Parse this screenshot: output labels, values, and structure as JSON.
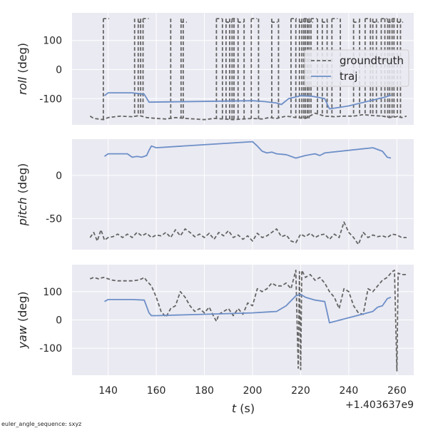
{
  "colors": {
    "panel_bg": "#eaeaf2",
    "grid": "#ffffff",
    "groundtruth": "#646464",
    "traj": "#6d8fc8"
  },
  "footnote": "euler_angle_sequence: sxyz",
  "chart_data": {
    "type": "line",
    "x_ticks": [
      140,
      160,
      180,
      200,
      220,
      240,
      260
    ],
    "xlim": [
      125,
      267
    ],
    "xlabel_prefix": "t",
    "xlabel_suffix": " (s)",
    "x_offset_label": "+1.403637e9",
    "legend": {
      "placement": "right",
      "entries": [
        {
          "name": "groundtruth",
          "style": "dashed",
          "color": "#646464"
        },
        {
          "name": "traj",
          "style": "solid",
          "color": "#6d8fc8"
        }
      ]
    },
    "panels": [
      {
        "id": "roll",
        "ylabel_italic": "roll",
        "ylabel_suffix": " (deg)",
        "ylim": [
          -190,
          195
        ],
        "y_ticks": [
          -100,
          0,
          100
        ],
        "groundtruth": {
          "base": [
            [
              132.5,
              -160
            ],
            [
              134,
              -168
            ],
            [
              136,
              -170
            ],
            [
              138,
              -172
            ],
            [
              140,
              -165
            ],
            [
              145,
              -160
            ],
            [
              150,
              -162
            ],
            [
              153,
              -158
            ],
            [
              156,
              -165
            ],
            [
              160,
              -168
            ],
            [
              164,
              -170
            ],
            [
              168,
              -165
            ],
            [
              172,
              -168
            ],
            [
              176,
              -170
            ],
            [
              180,
              -172
            ],
            [
              184,
              -168
            ],
            [
              188,
              -170
            ],
            [
              192,
              -172
            ],
            [
              196,
              -170
            ],
            [
              200,
              -168
            ],
            [
              204,
              -170
            ],
            [
              207,
              -165
            ],
            [
              210,
              -168
            ],
            [
              214,
              -160
            ],
            [
              218,
              -165
            ],
            [
              222,
              -168
            ],
            [
              226,
              -150
            ],
            [
              230,
              -160
            ],
            [
              234,
              -162
            ],
            [
              238,
              -160
            ],
            [
              242,
              -160
            ],
            [
              246,
              -155
            ],
            [
              250,
              -158
            ],
            [
              254,
              -160
            ],
            [
              257,
              -165
            ],
            [
              260,
              -162
            ],
            [
              262,
              -165
            ],
            [
              264,
              -160
            ]
          ],
          "flip_times": [
            138,
            151,
            152.5,
            153.5,
            154.5,
            166,
            170.3,
            171.2,
            185,
            187.5,
            189,
            190.5,
            191.5,
            192.3,
            194,
            196.5,
            199.5,
            202.5,
            208,
            210.8,
            216,
            218,
            219.5,
            220.5,
            221.3,
            222,
            222.8,
            223.5,
            224.3,
            227,
            229,
            231,
            233,
            236.5,
            242,
            244.5,
            246.8,
            249,
            250,
            251.5,
            253.5,
            255,
            256.2,
            257,
            258,
            258.8,
            260.2,
            261.5
          ],
          "top_level": 175
        },
        "traj": [
          [
            138.5,
            -90
          ],
          [
            140,
            -80
          ],
          [
            150,
            -80
          ],
          [
            155,
            -85
          ],
          [
            157,
            -112
          ],
          [
            200,
            -107
          ],
          [
            205,
            -110
          ],
          [
            210,
            -115
          ],
          [
            212,
            -120
          ],
          [
            215,
            -100
          ],
          [
            220,
            -90
          ],
          [
            225,
            -92
          ],
          [
            230,
            -100
          ],
          [
            232,
            -135
          ],
          [
            240,
            -125
          ],
          [
            250,
            -105
          ],
          [
            255,
            -95
          ],
          [
            257.5,
            -88
          ]
        ]
      },
      {
        "id": "pitch",
        "ylabel_italic": "pitch",
        "ylabel_suffix": " (deg)",
        "ylim": [
          -86,
          42
        ],
        "y_ticks": [
          -50,
          0
        ],
        "groundtruth": [
          [
            132.5,
            -72
          ],
          [
            134,
            -66
          ],
          [
            135.5,
            -76
          ],
          [
            137,
            -63
          ],
          [
            138.5,
            -75
          ],
          [
            140,
            -72
          ],
          [
            142,
            -71
          ],
          [
            144,
            -68
          ],
          [
            146,
            -72
          ],
          [
            148,
            -68
          ],
          [
            150,
            -72
          ],
          [
            152,
            -66
          ],
          [
            154,
            -70
          ],
          [
            156,
            -67
          ],
          [
            158,
            -72
          ],
          [
            160,
            -69
          ],
          [
            162,
            -70
          ],
          [
            164,
            -66
          ],
          [
            166,
            -72
          ],
          [
            168,
            -63
          ],
          [
            170,
            -70
          ],
          [
            172,
            -62
          ],
          [
            174,
            -66
          ],
          [
            176,
            -71
          ],
          [
            178,
            -68
          ],
          [
            180,
            -72
          ],
          [
            182,
            -67
          ],
          [
            184,
            -74
          ],
          [
            186,
            -66
          ],
          [
            188,
            -70
          ],
          [
            190,
            -64
          ],
          [
            192,
            -72
          ],
          [
            194,
            -69
          ],
          [
            196,
            -74
          ],
          [
            198,
            -70
          ],
          [
            200,
            -76
          ],
          [
            202,
            -67
          ],
          [
            204,
            -72
          ],
          [
            206,
            -70
          ],
          [
            208,
            -66
          ],
          [
            210,
            -62
          ],
          [
            212,
            -71
          ],
          [
            214,
            -69
          ],
          [
            216,
            -76
          ],
          [
            218,
            -78
          ],
          [
            220,
            -68
          ],
          [
            222,
            -71
          ],
          [
            224,
            -67
          ],
          [
            226,
            -72
          ],
          [
            228,
            -69
          ],
          [
            230,
            -68
          ],
          [
            232,
            -74
          ],
          [
            234,
            -68
          ],
          [
            236,
            -72
          ],
          [
            238,
            -54
          ],
          [
            240,
            -66
          ],
          [
            242,
            -72
          ],
          [
            244,
            -80
          ],
          [
            246,
            -66
          ],
          [
            248,
            -72
          ],
          [
            250,
            -69
          ],
          [
            252,
            -71
          ],
          [
            254,
            -70
          ],
          [
            256,
            -72
          ],
          [
            258,
            -68
          ],
          [
            260,
            -69
          ],
          [
            262,
            -72
          ],
          [
            264,
            -72
          ]
        ],
        "traj": [
          [
            138.5,
            22
          ],
          [
            140,
            25
          ],
          [
            148,
            25
          ],
          [
            150,
            21
          ],
          [
            152,
            22
          ],
          [
            154,
            21
          ],
          [
            156,
            23
          ],
          [
            157,
            29
          ],
          [
            158,
            34
          ],
          [
            160,
            32
          ],
          [
            200,
            39
          ],
          [
            202,
            34
          ],
          [
            204,
            28
          ],
          [
            206,
            26
          ],
          [
            208,
            27
          ],
          [
            210,
            25
          ],
          [
            214,
            24
          ],
          [
            218,
            20
          ],
          [
            222,
            23
          ],
          [
            224,
            24
          ],
          [
            226,
            25
          ],
          [
            228,
            23
          ],
          [
            230,
            26
          ],
          [
            250,
            32
          ],
          [
            254,
            28
          ],
          [
            256,
            21
          ],
          [
            257.5,
            20
          ]
        ]
      },
      {
        "id": "yaw",
        "ylabel_italic": "yaw",
        "ylabel_suffix": " (deg)",
        "ylim": [
          -195,
          195
        ],
        "y_ticks": [
          -100,
          0,
          100
        ],
        "groundtruth": [
          [
            132.5,
            145
          ],
          [
            134,
            150
          ],
          [
            136,
            145
          ],
          [
            138,
            150
          ],
          [
            140,
            145
          ],
          [
            142,
            140
          ],
          [
            144,
            138
          ],
          [
            150,
            138
          ],
          [
            152,
            140
          ],
          [
            154,
            145
          ],
          [
            155,
            150
          ],
          [
            156,
            138
          ],
          [
            158,
            120
          ],
          [
            160,
            80
          ],
          [
            162,
            30
          ],
          [
            164,
            10
          ],
          [
            166,
            40
          ],
          [
            168,
            50
          ],
          [
            170,
            100
          ],
          [
            172,
            80
          ],
          [
            174,
            50
          ],
          [
            176,
            30
          ],
          [
            178,
            40
          ],
          [
            180,
            25
          ],
          [
            182,
            45
          ],
          [
            184,
            10
          ],
          [
            185,
            -5
          ],
          [
            186,
            20
          ],
          [
            188,
            30
          ],
          [
            190,
            40
          ],
          [
            192,
            15
          ],
          [
            194,
            40
          ],
          [
            196,
            20
          ],
          [
            198,
            60
          ],
          [
            200,
            50
          ],
          [
            202,
            110
          ],
          [
            204,
            100
          ],
          [
            206,
            110
          ],
          [
            208,
            130
          ],
          [
            210,
            120
          ],
          [
            212,
            120
          ],
          [
            214,
            130
          ],
          [
            216,
            110
          ],
          [
            218,
            175
          ],
          [
            219,
            -170
          ],
          [
            219.5,
            170
          ],
          [
            220,
            -175
          ],
          [
            220.5,
            175
          ],
          [
            222,
            150
          ],
          [
            224,
            160
          ],
          [
            226,
            140
          ],
          [
            228,
            150
          ],
          [
            230,
            130
          ],
          [
            232,
            100
          ],
          [
            234,
            80
          ],
          [
            236,
            40
          ],
          [
            238,
            110
          ],
          [
            240,
            100
          ],
          [
            242,
            50
          ],
          [
            244,
            25
          ],
          [
            246,
            20
          ],
          [
            248,
            110
          ],
          [
            250,
            100
          ],
          [
            252,
            120
          ],
          [
            254,
            140
          ],
          [
            256,
            150
          ],
          [
            258,
            170
          ],
          [
            259,
            175
          ],
          [
            260,
            -180
          ],
          [
            260.5,
            165
          ],
          [
            262,
            160
          ],
          [
            264,
            160
          ]
        ],
        "traj": [
          [
            138.5,
            65
          ],
          [
            140,
            72
          ],
          [
            150,
            72
          ],
          [
            155,
            70
          ],
          [
            157,
            25
          ],
          [
            158,
            15
          ],
          [
            160,
            15
          ],
          [
            200,
            25
          ],
          [
            210,
            30
          ],
          [
            214,
            50
          ],
          [
            218,
            85
          ],
          [
            220,
            90
          ],
          [
            222,
            80
          ],
          [
            226,
            70
          ],
          [
            230,
            65
          ],
          [
            232,
            -10
          ],
          [
            250,
            30
          ],
          [
            252,
            45
          ],
          [
            254,
            50
          ],
          [
            256,
            75
          ],
          [
            257.5,
            80
          ]
        ]
      }
    ]
  }
}
